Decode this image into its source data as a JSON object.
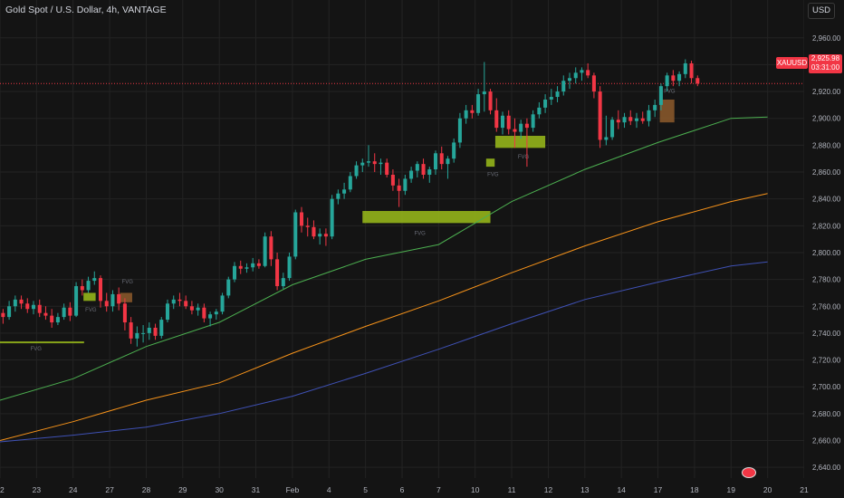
{
  "header": {
    "title": "Gold Spot / U.S. Dollar, 4h, VANTAGE",
    "currency": "USD",
    "symbol": "XAUUSD",
    "last_price": "2,925.98",
    "countdown": "03:31:00"
  },
  "colors": {
    "up": "#26a69a",
    "down": "#f23645",
    "ma_fast": "#4caf50",
    "ma_mid": "#f7931a",
    "ma_slow": "#3f51b5",
    "fvg_bull": "#9bbd1a",
    "fvg_bear": "#8d5a2b",
    "grid": "#232323",
    "price_line": "#f23645"
  },
  "chart_data": {
    "type": "candlestick",
    "y_axis": {
      "ticks": [
        2960,
        2940,
        2920,
        2900,
        2880,
        2860,
        2840,
        2820,
        2800,
        2780,
        2760,
        2740,
        2720,
        2700,
        2680,
        2660,
        2640
      ],
      "tick_labels": [
        "2,960.00",
        "2,940.00",
        "2,920.00",
        "2,900.00",
        "2,880.00",
        "2,860.00",
        "2,840.00",
        "2,820.00",
        "2,800.00",
        "2,780.00",
        "2,760.00",
        "2,740.00",
        "2,720.00",
        "2,700.00",
        "2,680.00",
        "2,660.00",
        "2,640.00"
      ],
      "ylim": [
        2632,
        2972
      ]
    },
    "x_axis": {
      "labels": [
        "22",
        "23",
        "24",
        "27",
        "28",
        "29",
        "30",
        "31",
        "Feb",
        "4",
        "5",
        "6",
        "7",
        "10",
        "11",
        "12",
        "13",
        "14",
        "17",
        "18",
        "19",
        "20",
        "21"
      ],
      "day_index": [
        0,
        6,
        12,
        18,
        24,
        30,
        36,
        42,
        48,
        54,
        60,
        66,
        72,
        78,
        84,
        90,
        96,
        102,
        108,
        114,
        120,
        126,
        132
      ],
      "xlim": [
        0,
        132
      ]
    },
    "last_price": 2925.98,
    "candles": [
      {
        "o": 2755,
        "h": 2758,
        "l": 2747,
        "c": 2752
      },
      {
        "o": 2752,
        "h": 2764,
        "l": 2750,
        "c": 2760
      },
      {
        "o": 2760,
        "h": 2768,
        "l": 2756,
        "c": 2765
      },
      {
        "o": 2765,
        "h": 2768,
        "l": 2758,
        "c": 2762
      },
      {
        "o": 2762,
        "h": 2766,
        "l": 2755,
        "c": 2758
      },
      {
        "o": 2758,
        "h": 2764,
        "l": 2754,
        "c": 2761
      },
      {
        "o": 2761,
        "h": 2765,
        "l": 2752,
        "c": 2755
      },
      {
        "o": 2755,
        "h": 2760,
        "l": 2750,
        "c": 2753
      },
      {
        "o": 2753,
        "h": 2758,
        "l": 2744,
        "c": 2748
      },
      {
        "o": 2748,
        "h": 2755,
        "l": 2746,
        "c": 2752
      },
      {
        "o": 2752,
        "h": 2762,
        "l": 2750,
        "c": 2759
      },
      {
        "o": 2759,
        "h": 2763,
        "l": 2749,
        "c": 2753
      },
      {
        "o": 2753,
        "h": 2778,
        "l": 2752,
        "c": 2775
      },
      {
        "o": 2775,
        "h": 2780,
        "l": 2768,
        "c": 2772
      },
      {
        "o": 2772,
        "h": 2782,
        "l": 2770,
        "c": 2779
      },
      {
        "o": 2779,
        "h": 2786,
        "l": 2776,
        "c": 2781
      },
      {
        "o": 2781,
        "h": 2783,
        "l": 2759,
        "c": 2764
      },
      {
        "o": 2764,
        "h": 2770,
        "l": 2756,
        "c": 2760
      },
      {
        "o": 2760,
        "h": 2772,
        "l": 2756,
        "c": 2769
      },
      {
        "o": 2769,
        "h": 2774,
        "l": 2757,
        "c": 2762
      },
      {
        "o": 2762,
        "h": 2766,
        "l": 2742,
        "c": 2748
      },
      {
        "o": 2748,
        "h": 2752,
        "l": 2732,
        "c": 2736
      },
      {
        "o": 2736,
        "h": 2745,
        "l": 2730,
        "c": 2740
      },
      {
        "o": 2740,
        "h": 2746,
        "l": 2733,
        "c": 2740
      },
      {
        "o": 2740,
        "h": 2748,
        "l": 2735,
        "c": 2744
      },
      {
        "o": 2744,
        "h": 2747,
        "l": 2735,
        "c": 2738
      },
      {
        "o": 2738,
        "h": 2752,
        "l": 2736,
        "c": 2750
      },
      {
        "o": 2750,
        "h": 2765,
        "l": 2748,
        "c": 2762
      },
      {
        "o": 2762,
        "h": 2768,
        "l": 2758,
        "c": 2765
      },
      {
        "o": 2765,
        "h": 2770,
        "l": 2760,
        "c": 2764
      },
      {
        "o": 2764,
        "h": 2768,
        "l": 2758,
        "c": 2760
      },
      {
        "o": 2760,
        "h": 2764,
        "l": 2754,
        "c": 2757
      },
      {
        "o": 2757,
        "h": 2762,
        "l": 2753,
        "c": 2759
      },
      {
        "o": 2759,
        "h": 2762,
        "l": 2748,
        "c": 2751
      },
      {
        "o": 2751,
        "h": 2756,
        "l": 2745,
        "c": 2754
      },
      {
        "o": 2754,
        "h": 2758,
        "l": 2750,
        "c": 2756
      },
      {
        "o": 2756,
        "h": 2770,
        "l": 2754,
        "c": 2768
      },
      {
        "o": 2768,
        "h": 2782,
        "l": 2766,
        "c": 2780
      },
      {
        "o": 2780,
        "h": 2793,
        "l": 2778,
        "c": 2790
      },
      {
        "o": 2790,
        "h": 2794,
        "l": 2784,
        "c": 2788
      },
      {
        "o": 2788,
        "h": 2792,
        "l": 2785,
        "c": 2789
      },
      {
        "o": 2789,
        "h": 2796,
        "l": 2786,
        "c": 2792
      },
      {
        "o": 2792,
        "h": 2795,
        "l": 2788,
        "c": 2790
      },
      {
        "o": 2790,
        "h": 2815,
        "l": 2789,
        "c": 2812
      },
      {
        "o": 2812,
        "h": 2816,
        "l": 2790,
        "c": 2795
      },
      {
        "o": 2795,
        "h": 2800,
        "l": 2772,
        "c": 2775
      },
      {
        "o": 2775,
        "h": 2785,
        "l": 2773,
        "c": 2781
      },
      {
        "o": 2781,
        "h": 2800,
        "l": 2779,
        "c": 2797
      },
      {
        "o": 2797,
        "h": 2832,
        "l": 2795,
        "c": 2830
      },
      {
        "o": 2830,
        "h": 2834,
        "l": 2815,
        "c": 2820
      },
      {
        "o": 2820,
        "h": 2826,
        "l": 2812,
        "c": 2819
      },
      {
        "o": 2819,
        "h": 2824,
        "l": 2810,
        "c": 2812
      },
      {
        "o": 2812,
        "h": 2818,
        "l": 2806,
        "c": 2814
      },
      {
        "o": 2814,
        "h": 2818,
        "l": 2805,
        "c": 2812
      },
      {
        "o": 2812,
        "h": 2843,
        "l": 2810,
        "c": 2840
      },
      {
        "o": 2840,
        "h": 2847,
        "l": 2836,
        "c": 2844
      },
      {
        "o": 2844,
        "h": 2852,
        "l": 2840,
        "c": 2847
      },
      {
        "o": 2847,
        "h": 2860,
        "l": 2845,
        "c": 2857
      },
      {
        "o": 2857,
        "h": 2868,
        "l": 2855,
        "c": 2865
      },
      {
        "o": 2865,
        "h": 2870,
        "l": 2860,
        "c": 2867
      },
      {
        "o": 2867,
        "h": 2880,
        "l": 2864,
        "c": 2868
      },
      {
        "o": 2868,
        "h": 2874,
        "l": 2860,
        "c": 2866
      },
      {
        "o": 2866,
        "h": 2870,
        "l": 2858,
        "c": 2867
      },
      {
        "o": 2867,
        "h": 2870,
        "l": 2856,
        "c": 2858
      },
      {
        "o": 2858,
        "h": 2862,
        "l": 2846,
        "c": 2850
      },
      {
        "o": 2850,
        "h": 2855,
        "l": 2834,
        "c": 2846
      },
      {
        "o": 2846,
        "h": 2858,
        "l": 2843,
        "c": 2855
      },
      {
        "o": 2855,
        "h": 2864,
        "l": 2852,
        "c": 2861
      },
      {
        "o": 2861,
        "h": 2868,
        "l": 2856,
        "c": 2866
      },
      {
        "o": 2866,
        "h": 2870,
        "l": 2855,
        "c": 2858
      },
      {
        "o": 2858,
        "h": 2864,
        "l": 2852,
        "c": 2862
      },
      {
        "o": 2862,
        "h": 2876,
        "l": 2858,
        "c": 2874
      },
      {
        "o": 2874,
        "h": 2879,
        "l": 2862,
        "c": 2866
      },
      {
        "o": 2866,
        "h": 2872,
        "l": 2855,
        "c": 2870
      },
      {
        "o": 2870,
        "h": 2885,
        "l": 2867,
        "c": 2882
      },
      {
        "o": 2882,
        "h": 2904,
        "l": 2878,
        "c": 2900
      },
      {
        "o": 2900,
        "h": 2910,
        "l": 2896,
        "c": 2906
      },
      {
        "o": 2906,
        "h": 2910,
        "l": 2900,
        "c": 2904
      },
      {
        "o": 2904,
        "h": 2922,
        "l": 2902,
        "c": 2918
      },
      {
        "o": 2918,
        "h": 2942,
        "l": 2905,
        "c": 2920
      },
      {
        "o": 2920,
        "h": 2922,
        "l": 2903,
        "c": 2906
      },
      {
        "o": 2906,
        "h": 2915,
        "l": 2890,
        "c": 2893
      },
      {
        "o": 2893,
        "h": 2905,
        "l": 2888,
        "c": 2902
      },
      {
        "o": 2902,
        "h": 2906,
        "l": 2888,
        "c": 2892
      },
      {
        "o": 2892,
        "h": 2900,
        "l": 2878,
        "c": 2890
      },
      {
        "o": 2890,
        "h": 2899,
        "l": 2885,
        "c": 2896
      },
      {
        "o": 2896,
        "h": 2900,
        "l": 2864,
        "c": 2893
      },
      {
        "o": 2893,
        "h": 2906,
        "l": 2890,
        "c": 2903
      },
      {
        "o": 2903,
        "h": 2912,
        "l": 2900,
        "c": 2908
      },
      {
        "o": 2908,
        "h": 2918,
        "l": 2904,
        "c": 2914
      },
      {
        "o": 2914,
        "h": 2922,
        "l": 2910,
        "c": 2916
      },
      {
        "o": 2916,
        "h": 2924,
        "l": 2912,
        "c": 2920
      },
      {
        "o": 2920,
        "h": 2932,
        "l": 2917,
        "c": 2928
      },
      {
        "o": 2928,
        "h": 2934,
        "l": 2922,
        "c": 2930
      },
      {
        "o": 2930,
        "h": 2938,
        "l": 2926,
        "c": 2934
      },
      {
        "o": 2934,
        "h": 2938,
        "l": 2928,
        "c": 2936
      },
      {
        "o": 2936,
        "h": 2941,
        "l": 2930,
        "c": 2932
      },
      {
        "o": 2932,
        "h": 2934,
        "l": 2915,
        "c": 2920
      },
      {
        "o": 2920,
        "h": 2924,
        "l": 2878,
        "c": 2884
      },
      {
        "o": 2884,
        "h": 2902,
        "l": 2880,
        "c": 2886
      },
      {
        "o": 2886,
        "h": 2901,
        "l": 2884,
        "c": 2899
      },
      {
        "o": 2899,
        "h": 2906,
        "l": 2892,
        "c": 2897
      },
      {
        "o": 2897,
        "h": 2904,
        "l": 2893,
        "c": 2901
      },
      {
        "o": 2901,
        "h": 2906,
        "l": 2895,
        "c": 2898
      },
      {
        "o": 2898,
        "h": 2904,
        "l": 2893,
        "c": 2900
      },
      {
        "o": 2900,
        "h": 2905,
        "l": 2896,
        "c": 2898
      },
      {
        "o": 2898,
        "h": 2910,
        "l": 2894,
        "c": 2906
      },
      {
        "o": 2906,
        "h": 2914,
        "l": 2901,
        "c": 2910
      },
      {
        "o": 2910,
        "h": 2926,
        "l": 2906,
        "c": 2924
      },
      {
        "o": 2924,
        "h": 2934,
        "l": 2920,
        "c": 2932
      },
      {
        "o": 2932,
        "h": 2936,
        "l": 2924,
        "c": 2928
      },
      {
        "o": 2928,
        "h": 2935,
        "l": 2924,
        "c": 2933
      },
      {
        "o": 2933,
        "h": 2944,
        "l": 2930,
        "c": 2941
      },
      {
        "o": 2941,
        "h": 2943,
        "l": 2926,
        "c": 2930
      },
      {
        "o": 2930,
        "h": 2932,
        "l": 2924,
        "c": 2926
      }
    ],
    "moving_averages": [
      {
        "color": "#4caf50",
        "points": [
          [
            0,
            2690
          ],
          [
            12,
            2706
          ],
          [
            24,
            2730
          ],
          [
            36,
            2748
          ],
          [
            48,
            2776
          ],
          [
            60,
            2795
          ],
          [
            72,
            2806
          ],
          [
            84,
            2838
          ],
          [
            96,
            2862
          ],
          [
            108,
            2882
          ],
          [
            120,
            2900
          ],
          [
            126,
            2901
          ]
        ]
      },
      {
        "color": "#f7931a",
        "points": [
          [
            0,
            2660
          ],
          [
            12,
            2674
          ],
          [
            24,
            2690
          ],
          [
            36,
            2703
          ],
          [
            48,
            2725
          ],
          [
            60,
            2745
          ],
          [
            72,
            2764
          ],
          [
            84,
            2785
          ],
          [
            96,
            2805
          ],
          [
            108,
            2823
          ],
          [
            120,
            2838
          ],
          [
            126,
            2844
          ]
        ]
      },
      {
        "color": "#3f51b5",
        "points": [
          [
            0,
            2659
          ],
          [
            12,
            2664
          ],
          [
            24,
            2670
          ],
          [
            36,
            2680
          ],
          [
            48,
            2693
          ],
          [
            60,
            2710
          ],
          [
            72,
            2728
          ],
          [
            84,
            2747
          ],
          [
            96,
            2765
          ],
          [
            108,
            2778
          ],
          [
            120,
            2790
          ],
          [
            126,
            2793
          ]
        ]
      }
    ],
    "zones": [
      {
        "kind": "line",
        "x0": 0,
        "x1": 13.8,
        "y0": 2733,
        "y1": 2733.8,
        "color": "#9bbd1a",
        "label": "FVG",
        "label_x": 5,
        "label_y": 2727
      },
      {
        "kind": "box",
        "x0": 13.7,
        "x1": 15.7,
        "y0": 2764,
        "y1": 2770,
        "color": "#9bbd1a",
        "label": "FVG",
        "label_x": 14,
        "label_y": 2756
      },
      {
        "kind": "box",
        "x0": 19.7,
        "x1": 21.7,
        "y0": 2763,
        "y1": 2770,
        "color": "#8d5a2b",
        "label": "FVG",
        "label_x": 20,
        "label_y": 2777
      },
      {
        "kind": "box",
        "x0": 59.5,
        "x1": 80.5,
        "y0": 2822,
        "y1": 2831,
        "color": "#9bbd1a",
        "label": "FVG",
        "label_x": 68,
        "label_y": 2813
      },
      {
        "kind": "box",
        "x0": 79.8,
        "x1": 81.2,
        "y0": 2864,
        "y1": 2870,
        "color": "#9bbd1a",
        "label": "FVG",
        "label_x": 80,
        "label_y": 2857
      },
      {
        "kind": "box",
        "x0": 81.3,
        "x1": 89.5,
        "y0": 2878,
        "y1": 2887,
        "color": "#9bbd1a",
        "label": "FVG",
        "label_x": 85,
        "label_y": 2870
      },
      {
        "kind": "box",
        "x0": 108.3,
        "x1": 110.7,
        "y0": 2897,
        "y1": 2914,
        "color": "#8d5a2b",
        "label": "FVG",
        "label_x": 109,
        "label_y": 2919
      }
    ]
  }
}
